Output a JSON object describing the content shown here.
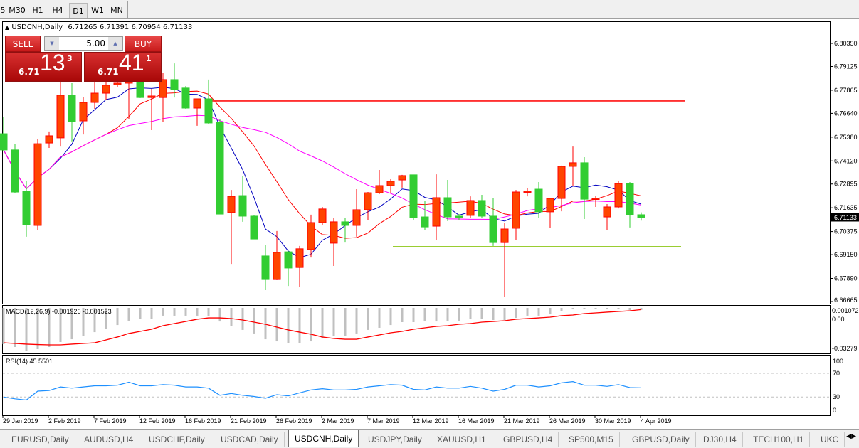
{
  "timeframes": [
    {
      "label": "5",
      "selected": false
    },
    {
      "label": "M30",
      "selected": false
    },
    {
      "label": "H1",
      "selected": false
    },
    {
      "label": "H4",
      "selected": false
    },
    {
      "label": "D1",
      "selected": true
    },
    {
      "label": "W1",
      "selected": false
    },
    {
      "label": "MN",
      "selected": false
    }
  ],
  "chart_header": {
    "symbol": "USDCNH,Daily",
    "ohlc": "6.71265 6.71391 6.70954 6.71133"
  },
  "trade_panel": {
    "sell_label": "SELL",
    "buy_label": "BUY",
    "lots": "5.00",
    "sell_big": "13",
    "sell_prefix": "6.71",
    "sell_sup": "3",
    "buy_big": "41",
    "buy_prefix": "6.71",
    "buy_sup": "1"
  },
  "tabs": [
    {
      "label": "EURUSD,Daily"
    },
    {
      "label": "AUDUSD,H4"
    },
    {
      "label": "USDCHF,Daily"
    },
    {
      "label": "USDCAD,Daily"
    },
    {
      "label": "USDCNH,Daily",
      "selected": true
    },
    {
      "label": "USDJPY,Daily"
    },
    {
      "label": "XAUUSD,H1"
    },
    {
      "label": "GBPUSD,H4"
    },
    {
      "label": "SP500,M15"
    },
    {
      "label": "GBPUSD,Daily"
    },
    {
      "label": "DJ30,H4"
    },
    {
      "label": "TECH100,H1"
    },
    {
      "label": "UKC"
    }
  ],
  "colors": {
    "bull": "#ff4500",
    "bear": "#32cd32",
    "ma_fast": "#0000c0",
    "ma_mid": "#ff0000",
    "ma_slow": "#ff00ff",
    "resistance": "#ff3030",
    "support": "#9acd32",
    "macd_hist": "#c0c0c0",
    "macd_signal": "#ff0000",
    "rsi": "#1e90ff"
  },
  "chart_data": [
    {
      "type": "candlestick",
      "title": "USDCNH,Daily",
      "price_ticks": [
        "6.80350",
        "6.79125",
        "6.77865",
        "6.76640",
        "6.75380",
        "6.74120",
        "6.72895",
        "6.71635",
        "6.70375",
        "6.69150",
        "6.67890",
        "6.66665"
      ],
      "current_price": "6.71133",
      "date_labels": [
        "29 Jan 2019",
        "2 Feb 2019",
        "7 Feb 2019",
        "12 Feb 2019",
        "16 Feb 2019",
        "21 Feb 2019",
        "26 Feb 2019",
        "2 Mar 2019",
        "7 Mar 2019",
        "12 Mar 2019",
        "16 Mar 2019",
        "21 Mar 2019",
        "26 Mar 2019",
        "30 Mar 2019",
        "4 Apr 2019"
      ],
      "ylim": [
        6.66665,
        6.8035
      ],
      "ohlc": [
        [
          6.7556,
          6.7643,
          6.7462,
          6.747
        ],
        [
          6.747,
          6.75,
          6.7243,
          6.7247
        ],
        [
          6.7251,
          6.7304,
          6.701,
          6.7074
        ],
        [
          6.707,
          6.753,
          6.7044,
          6.7503
        ],
        [
          6.7507,
          6.7568,
          6.7481,
          6.7545
        ],
        [
          6.7534,
          6.7828,
          6.7488,
          6.776
        ],
        [
          6.776,
          6.7824,
          6.7515,
          6.762
        ],
        [
          6.7624,
          6.7752,
          6.7552,
          6.7722
        ],
        [
          6.7722,
          6.7828,
          6.7688,
          6.7771
        ],
        [
          6.7771,
          6.7839,
          6.7737,
          6.7813
        ],
        [
          6.7816,
          6.7831,
          6.7805,
          6.7824
        ],
        [
          6.7824,
          6.788,
          6.7635,
          6.7839
        ],
        [
          6.7831,
          6.7869,
          6.7745,
          6.7748
        ],
        [
          6.7748,
          6.7794,
          6.7575,
          6.7756
        ],
        [
          6.7748,
          6.788,
          6.762,
          6.7843
        ],
        [
          6.7843,
          6.7929,
          6.7748,
          6.779
        ],
        [
          6.7798,
          6.7809,
          6.7688,
          6.7692
        ],
        [
          6.7692,
          6.7741,
          6.7598,
          6.7741
        ],
        [
          6.7741,
          6.7843,
          6.7605,
          6.7613
        ],
        [
          6.7617,
          6.7635,
          6.713,
          6.713
        ],
        [
          6.7138,
          6.7258,
          6.6866,
          6.7224
        ],
        [
          6.7228,
          6.733,
          6.7089,
          6.7119
        ],
        [
          6.7119,
          6.7123,
          6.6998,
          6.6998
        ],
        [
          6.6908,
          6.6968,
          6.6727,
          6.6783
        ],
        [
          6.6783,
          6.704,
          6.678,
          6.6927
        ],
        [
          6.693,
          6.6934,
          6.6749,
          6.6844
        ],
        [
          6.6847,
          6.6961,
          6.6742,
          6.6946
        ],
        [
          6.6942,
          6.7127,
          6.69,
          6.7085
        ],
        [
          6.7085,
          6.7168,
          6.707,
          6.7157
        ],
        [
          6.6976,
          6.7111,
          6.6855,
          6.7089
        ],
        [
          6.7089,
          6.7111,
          6.6979,
          6.707
        ],
        [
          6.707,
          6.7262,
          6.701,
          6.7153
        ],
        [
          6.7153,
          6.7247,
          6.71,
          6.7243
        ],
        [
          6.7243,
          6.7364,
          6.7236,
          6.7281
        ],
        [
          6.7281,
          6.7315,
          6.7243,
          6.7304
        ],
        [
          6.7311,
          6.7338,
          6.727,
          6.7334
        ],
        [
          6.7338,
          6.7338,
          6.71,
          6.7111
        ],
        [
          6.7115,
          6.7198,
          6.7044,
          6.7062
        ],
        [
          6.7066,
          6.7341,
          6.6991,
          6.7217
        ],
        [
          6.7217,
          6.7311,
          6.7093,
          6.7115
        ],
        [
          6.7119,
          6.713,
          6.71,
          6.7115
        ],
        [
          6.7123,
          6.7224,
          6.7108,
          6.7202
        ],
        [
          6.7202,
          6.7232,
          6.7108,
          6.7119
        ],
        [
          6.7119,
          6.7213,
          6.6961,
          6.6979
        ],
        [
          6.6979,
          6.7081,
          6.6689,
          6.7051
        ],
        [
          6.7055,
          6.7258,
          6.6994,
          6.7247
        ],
        [
          6.7247,
          6.7266,
          6.7224,
          6.7251
        ],
        [
          6.7262,
          6.73,
          6.7108,
          6.7142
        ],
        [
          6.7142,
          6.7217,
          6.7055,
          6.7213
        ],
        [
          6.7213,
          6.7387,
          6.7145,
          6.7383
        ],
        [
          6.7383,
          6.7488,
          6.7277,
          6.7402
        ],
        [
          6.7402,
          6.7432,
          6.7104,
          6.7209
        ],
        [
          6.7209,
          6.7228,
          6.7168,
          6.7213
        ],
        [
          6.7115,
          6.7183,
          6.7047,
          6.7168
        ],
        [
          6.7168,
          6.7307,
          6.716,
          6.7292
        ],
        [
          6.7292,
          6.73,
          6.7059,
          6.7127
        ],
        [
          6.71265,
          6.71391,
          6.70954,
          6.71133
        ]
      ],
      "moving_averages": [
        {
          "period": 5,
          "color": "#0000c0"
        },
        {
          "period": 10,
          "color": "#ff0000"
        },
        {
          "period": 21,
          "color": "#ff00ff"
        }
      ],
      "horizontal_lines": [
        {
          "price": 6.773,
          "color": "#ff3030"
        },
        {
          "price": 6.6957,
          "color": "#9acd32"
        }
      ]
    },
    {
      "type": "bar",
      "title": "MACD(12,26,9) -0.001926 -0.001523",
      "axis_labels": [
        "0.00",
        "0.001072",
        "-0.03279"
      ],
      "histogram": [
        -0.0326,
        -0.0352,
        -0.039,
        -0.0371,
        -0.0352,
        -0.0307,
        -0.0282,
        -0.025,
        -0.0218,
        -0.0186,
        -0.0154,
        -0.0115,
        -0.0102,
        -0.0096,
        -0.007,
        -0.007,
        -0.007,
        -0.007,
        -0.0077,
        -0.0122,
        -0.016,
        -0.0198,
        -0.023,
        -0.0282,
        -0.0301,
        -0.0314,
        -0.0314,
        -0.0301,
        -0.0275,
        -0.0256,
        -0.0256,
        -0.023,
        -0.0198,
        -0.0179,
        -0.0154,
        -0.0128,
        -0.0128,
        -0.0115,
        -0.0122,
        -0.0115,
        -0.0115,
        -0.0102,
        -0.0102,
        -0.0109,
        -0.0109,
        -0.009,
        -0.007,
        -0.007,
        -0.0058,
        -0.0032,
        -0.0013,
        -0.0006,
        -0.0006,
        -0.0013,
        -0.0013,
        -0.0019,
        -0.0019
      ],
      "signal": [
        -0.0314,
        -0.032,
        -0.0326,
        -0.033,
        -0.0333,
        -0.0333,
        -0.0326,
        -0.032,
        -0.0314,
        -0.0288,
        -0.0262,
        -0.023,
        -0.0211,
        -0.0192,
        -0.016,
        -0.0141,
        -0.0122,
        -0.0102,
        -0.009,
        -0.009,
        -0.0096,
        -0.0109,
        -0.0128,
        -0.0147,
        -0.0173,
        -0.0198,
        -0.0218,
        -0.0237,
        -0.0262,
        -0.0275,
        -0.0282,
        -0.0282,
        -0.0262,
        -0.0243,
        -0.0224,
        -0.0211,
        -0.0192,
        -0.0179,
        -0.0166,
        -0.016,
        -0.0147,
        -0.0141,
        -0.0128,
        -0.0122,
        -0.0115,
        -0.0102,
        -0.0096,
        -0.009,
        -0.0083,
        -0.007,
        -0.0064,
        -0.0051,
        -0.0045,
        -0.0038,
        -0.0032,
        -0.0026,
        -0.0015
      ]
    },
    {
      "type": "line",
      "title": "RSI(14) 45.5501",
      "ylim": [
        0,
        100
      ],
      "levels": [
        30,
        70
      ],
      "axis_labels": [
        "100",
        "70",
        "30",
        "0"
      ],
      "values": [
        30,
        27,
        25,
        40,
        41,
        47,
        45,
        47,
        49,
        49,
        50,
        55,
        49,
        49,
        51,
        50,
        47,
        47,
        45,
        33,
        36,
        33,
        31,
        28,
        34,
        32,
        37,
        42,
        44,
        42,
        42,
        43,
        47,
        49,
        51,
        50,
        43,
        42,
        47,
        45,
        45,
        48,
        45,
        40,
        43,
        50,
        50,
        47,
        49,
        54,
        56,
        50,
        50,
        48,
        51,
        46,
        45.55
      ]
    }
  ]
}
